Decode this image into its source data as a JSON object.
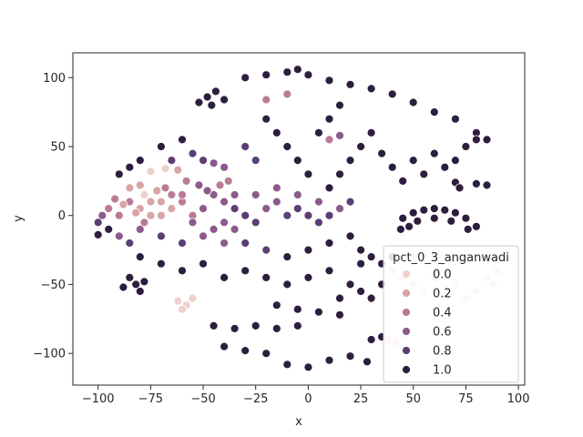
{
  "chart_data": {
    "type": "scatter",
    "xlabel": "x",
    "ylabel": "y",
    "xlim": [
      -112,
      103
    ],
    "ylim": [
      -123,
      118
    ],
    "xticks": [
      -100,
      -75,
      -50,
      -25,
      0,
      25,
      50,
      75,
      100
    ],
    "yticks": [
      -100,
      -50,
      0,
      50,
      100
    ],
    "grid": false,
    "legend": {
      "title": "pct_0_3_anganwadi",
      "placement": "lower-right",
      "entries": [
        {
          "label": "0.0",
          "value": 0.0
        },
        {
          "label": "0.2",
          "value": 0.2
        },
        {
          "label": "0.4",
          "value": 0.4
        },
        {
          "label": "0.6",
          "value": 0.6
        },
        {
          "label": "0.8",
          "value": 0.8
        },
        {
          "label": "1.0",
          "value": 1.0
        }
      ]
    },
    "colormap": {
      "0.0": "#edd1cb",
      "0.2": "#d8a4a6",
      "0.4": "#b97b98",
      "0.6": "#8b5b8c",
      "0.8": "#5c3e73",
      "1.0": "#2d1e3e"
    },
    "points": [
      [
        -48,
        86,
        1.0
      ],
      [
        -44,
        90,
        1.0
      ],
      [
        -40,
        84,
        1.0
      ],
      [
        -46,
        80,
        1.0
      ],
      [
        -52,
        82,
        1.0
      ],
      [
        -30,
        100,
        1.0
      ],
      [
        -20,
        102,
        1.0
      ],
      [
        -10,
        104,
        1.0
      ],
      [
        -5,
        106,
        1.0
      ],
      [
        0,
        102,
        1.0
      ],
      [
        10,
        98,
        1.0
      ],
      [
        20,
        95,
        1.0
      ],
      [
        30,
        92,
        1.0
      ],
      [
        40,
        88,
        1.0
      ],
      [
        50,
        82,
        1.0
      ],
      [
        60,
        75,
        1.0
      ],
      [
        70,
        70,
        1.0
      ],
      [
        80,
        60,
        1.0
      ],
      [
        85,
        55,
        1.0
      ],
      [
        -90,
        30,
        1.0
      ],
      [
        -85,
        35,
        1.0
      ],
      [
        -80,
        40,
        1.0
      ],
      [
        -70,
        50,
        1.0
      ],
      [
        -60,
        55,
        1.0
      ],
      [
        -65,
        40,
        0.8
      ],
      [
        -55,
        45,
        0.8
      ],
      [
        -50,
        40,
        0.8
      ],
      [
        -45,
        38,
        0.6
      ],
      [
        -40,
        35,
        0.6
      ],
      [
        -75,
        32,
        0.0
      ],
      [
        -68,
        34,
        0.0
      ],
      [
        -62,
        33,
        0.2
      ],
      [
        -95,
        5,
        0.4
      ],
      [
        -90,
        0,
        0.4
      ],
      [
        -85,
        10,
        0.4
      ],
      [
        -80,
        5,
        0.2
      ],
      [
        -75,
        10,
        0.2
      ],
      [
        -70,
        0,
        0.2
      ],
      [
        -65,
        5,
        0.2
      ],
      [
        -60,
        10,
        0.4
      ],
      [
        -55,
        0,
        0.4
      ],
      [
        -50,
        5,
        0.6
      ],
      [
        -45,
        15,
        0.6
      ],
      [
        -40,
        10,
        0.6
      ],
      [
        -35,
        5,
        0.8
      ],
      [
        -30,
        0,
        0.8
      ],
      [
        -25,
        -5,
        0.8
      ],
      [
        -20,
        5,
        0.6
      ],
      [
        -15,
        10,
        0.6
      ],
      [
        -10,
        0,
        0.8
      ],
      [
        -5,
        5,
        0.8
      ],
      [
        0,
        0,
        0.8
      ],
      [
        5,
        -5,
        0.8
      ],
      [
        10,
        0,
        0.8
      ],
      [
        15,
        5,
        0.6
      ],
      [
        20,
        10,
        0.8
      ],
      [
        -85,
        20,
        0.2
      ],
      [
        -80,
        22,
        0.2
      ],
      [
        -78,
        15,
        0.0
      ],
      [
        -72,
        18,
        0.2
      ],
      [
        -68,
        20,
        0.4
      ],
      [
        -58,
        25,
        0.4
      ],
      [
        -52,
        22,
        0.6
      ],
      [
        -48,
        18,
        0.6
      ],
      [
        -42,
        22,
        0.4
      ],
      [
        -38,
        25,
        0.4
      ],
      [
        -90,
        -15,
        0.6
      ],
      [
        -85,
        -20,
        0.8
      ],
      [
        -80,
        -10,
        0.6
      ],
      [
        -70,
        -15,
        0.8
      ],
      [
        -60,
        -20,
        0.8
      ],
      [
        -50,
        -15,
        0.6
      ],
      [
        -40,
        -20,
        0.6
      ],
      [
        -35,
        -10,
        0.6
      ],
      [
        -30,
        -20,
        0.8
      ],
      [
        -20,
        -25,
        0.8
      ],
      [
        -10,
        -30,
        1.0
      ],
      [
        0,
        -25,
        1.0
      ],
      [
        10,
        -20,
        1.0
      ],
      [
        20,
        -15,
        1.0
      ],
      [
        25,
        -25,
        1.0
      ],
      [
        -80,
        -30,
        1.0
      ],
      [
        -70,
        -35,
        1.0
      ],
      [
        -60,
        -40,
        1.0
      ],
      [
        -50,
        -35,
        1.0
      ],
      [
        -40,
        -45,
        1.0
      ],
      [
        -30,
        -40,
        1.0
      ],
      [
        -20,
        -45,
        1.0
      ],
      [
        -10,
        -50,
        1.0
      ],
      [
        0,
        -45,
        1.0
      ],
      [
        10,
        -40,
        1.0
      ],
      [
        -85,
        -45,
        1.0
      ],
      [
        -82,
        -50,
        1.0
      ],
      [
        -78,
        -48,
        1.0
      ],
      [
        -88,
        -52,
        1.0
      ],
      [
        -80,
        -55,
        1.0
      ],
      [
        -62,
        -62,
        0.0
      ],
      [
        -58,
        -65,
        0.0
      ],
      [
        -55,
        -60,
        0.0
      ],
      [
        -60,
        -68,
        0.0
      ],
      [
        -45,
        -80,
        1.0
      ],
      [
        -35,
        -82,
        1.0
      ],
      [
        -25,
        -80,
        1.0
      ],
      [
        -15,
        -82,
        1.0
      ],
      [
        -5,
        -80,
        1.0
      ],
      [
        -40,
        -95,
        1.0
      ],
      [
        -30,
        -98,
        1.0
      ],
      [
        -20,
        -100,
        1.0
      ],
      [
        -10,
        -108,
        1.0
      ],
      [
        0,
        -110,
        1.0
      ],
      [
        10,
        -105,
        1.0
      ],
      [
        20,
        -102,
        1.0
      ],
      [
        28,
        -106,
        1.0
      ],
      [
        30,
        -90,
        1.0
      ],
      [
        35,
        -88,
        1.0
      ],
      [
        -15,
        -65,
        1.0
      ],
      [
        -5,
        -68,
        1.0
      ],
      [
        5,
        -70,
        1.0
      ],
      [
        15,
        -72,
        1.0
      ],
      [
        10,
        20,
        1.0
      ],
      [
        15,
        30,
        1.0
      ],
      [
        20,
        40,
        1.0
      ],
      [
        25,
        50,
        1.0
      ],
      [
        30,
        60,
        1.0
      ],
      [
        35,
        45,
        1.0
      ],
      [
        40,
        35,
        1.0
      ],
      [
        45,
        25,
        1.0
      ],
      [
        50,
        40,
        1.0
      ],
      [
        55,
        30,
        1.0
      ],
      [
        60,
        45,
        1.0
      ],
      [
        65,
        35,
        1.0
      ],
      [
        70,
        40,
        1.0
      ],
      [
        75,
        50,
        1.0
      ],
      [
        80,
        55,
        1.0
      ],
      [
        0,
        30,
        1.0
      ],
      [
        -5,
        40,
        1.0
      ],
      [
        -10,
        50,
        1.0
      ],
      [
        -15,
        60,
        1.0
      ],
      [
        -20,
        70,
        1.0
      ],
      [
        5,
        60,
        1.0
      ],
      [
        10,
        70,
        1.0
      ],
      [
        15,
        80,
        1.0
      ],
      [
        -25,
        40,
        0.8
      ],
      [
        -30,
        50,
        0.8
      ],
      [
        45,
        -2,
        1.0
      ],
      [
        50,
        2,
        1.0
      ],
      [
        55,
        4,
        1.0
      ],
      [
        60,
        5,
        1.0
      ],
      [
        65,
        4,
        1.0
      ],
      [
        70,
        2,
        1.0
      ],
      [
        75,
        -2,
        1.0
      ],
      [
        80,
        -8,
        1.0
      ],
      [
        48,
        -8,
        1.0
      ],
      [
        52,
        -4,
        1.0
      ],
      [
        60,
        -2,
        1.0
      ],
      [
        68,
        -4,
        1.0
      ],
      [
        76,
        -10,
        1.0
      ],
      [
        44,
        -10,
        1.0
      ],
      [
        70,
        24,
        1.0
      ],
      [
        80,
        23,
        1.0
      ],
      [
        85,
        22,
        1.0
      ],
      [
        72,
        20,
        1.0
      ],
      [
        40,
        -40,
        0.0
      ],
      [
        45,
        -45,
        0.0
      ],
      [
        50,
        -50,
        0.0
      ],
      [
        55,
        -55,
        0.0
      ],
      [
        60,
        -45,
        0.0
      ],
      [
        65,
        -40,
        0.0
      ],
      [
        70,
        -50,
        0.0
      ],
      [
        75,
        -60,
        0.0
      ],
      [
        80,
        -55,
        0.0
      ],
      [
        85,
        -45,
        0.0
      ],
      [
        88,
        -50,
        0.0
      ],
      [
        38,
        -90,
        0.0
      ],
      [
        42,
        -92,
        0.0
      ],
      [
        46,
        -88,
        0.0
      ],
      [
        50,
        -30,
        0.0
      ],
      [
        55,
        -28,
        0.0
      ],
      [
        60,
        -32,
        0.0
      ],
      [
        90,
        -40,
        0.0
      ],
      [
        20,
        -50,
        1.0
      ],
      [
        25,
        -55,
        1.0
      ],
      [
        30,
        -60,
        1.0
      ],
      [
        15,
        -60,
        1.0
      ],
      [
        35,
        -50,
        1.0
      ],
      [
        30,
        -30,
        1.0
      ],
      [
        35,
        -35,
        1.0
      ],
      [
        40,
        -30,
        1.0
      ],
      [
        25,
        -35,
        1.0
      ],
      [
        -100,
        -14,
        1.0
      ],
      [
        -95,
        -10,
        1.0
      ],
      [
        -100,
        -5,
        0.8
      ],
      [
        -98,
        0,
        0.6
      ],
      [
        -40,
        -5,
        0.6
      ],
      [
        -45,
        -10,
        0.6
      ],
      [
        -55,
        -5,
        0.6
      ],
      [
        -35,
        15,
        0.6
      ],
      [
        -25,
        15,
        0.6
      ],
      [
        -15,
        20,
        0.6
      ],
      [
        -5,
        15,
        0.6
      ],
      [
        5,
        10,
        0.6
      ],
      [
        -60,
        15,
        0.4
      ],
      [
        -65,
        15,
        0.4
      ],
      [
        -70,
        10,
        0.2
      ],
      [
        -75,
        0,
        0.2
      ],
      [
        -82,
        2,
        0.2
      ],
      [
        -88,
        8,
        0.2
      ],
      [
        -92,
        12,
        0.4
      ],
      [
        -78,
        -5,
        0.4
      ],
      [
        10,
        55,
        0.4
      ],
      [
        15,
        58,
        0.6
      ],
      [
        -20,
        84,
        0.4
      ],
      [
        -10,
        88,
        0.4
      ]
    ]
  }
}
